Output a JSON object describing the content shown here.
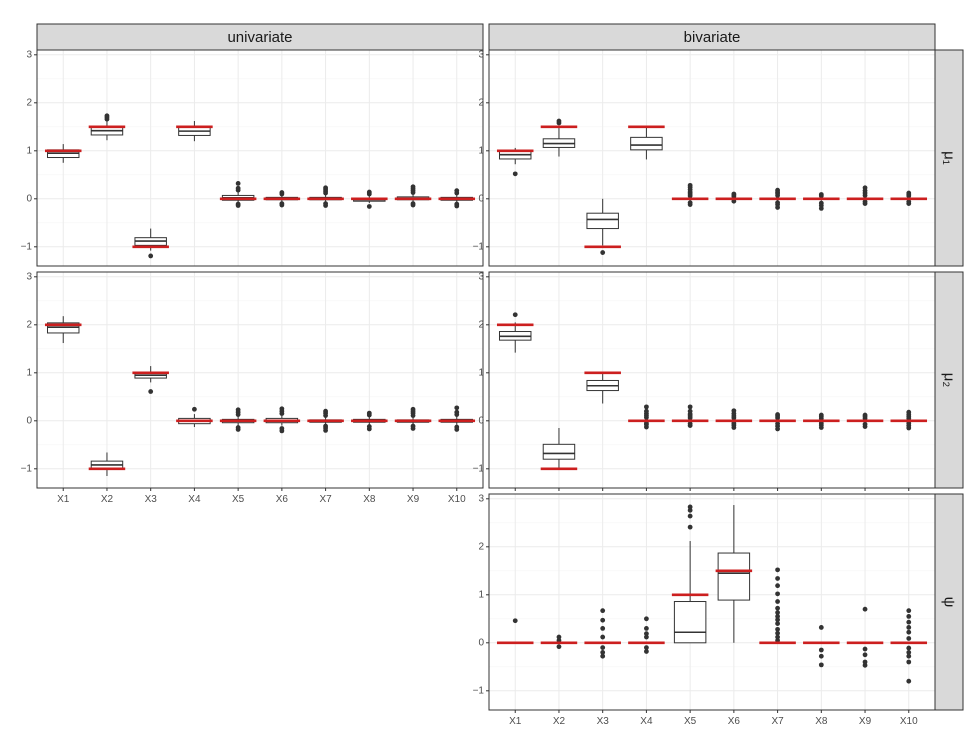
{
  "chart_data": {
    "type": "boxplot",
    "title": "",
    "xlabel": "",
    "ylabel": "",
    "categories": [
      "X1",
      "X2",
      "X3",
      "X4",
      "X5",
      "X6",
      "X7",
      "X8",
      "X9",
      "X10"
    ],
    "ylim": [
      -1.4,
      3.1
    ],
    "yticks": [
      -1,
      0,
      1,
      2,
      3
    ],
    "ytick_labels": [
      "−1",
      "0",
      "1",
      "2",
      "3"
    ],
    "truth_color": "#cc1f1f",
    "columns": [
      "univariate",
      "bivariate"
    ],
    "rows": [
      "μ₁",
      "μ₂",
      "ψ"
    ],
    "panels": [
      {
        "column": "univariate",
        "row": "μ₁",
        "truth": [
          1,
          1.5,
          -1,
          1.5,
          0,
          0,
          0,
          0,
          0,
          0
        ],
        "boxes": [
          {
            "min": 0.75,
            "q1": 0.86,
            "median": 0.95,
            "q3": 1.02,
            "max": 1.14,
            "outliers": []
          },
          {
            "min": 1.22,
            "q1": 1.33,
            "median": 1.42,
            "q3": 1.5,
            "max": 1.62,
            "outliers": [
              1.66,
              1.7,
              1.73
            ]
          },
          {
            "min": -1.08,
            "q1": -0.97,
            "median": -0.88,
            "q3": -0.81,
            "max": -0.62,
            "outliers": [
              -1.19
            ]
          },
          {
            "min": 1.2,
            "q1": 1.32,
            "median": 1.41,
            "q3": 1.49,
            "max": 1.62,
            "outliers": []
          },
          {
            "min": -0.08,
            "q1": -0.03,
            "median": 0.02,
            "q3": 0.07,
            "max": 0.15,
            "outliers": [
              -0.14,
              -0.11,
              0.18,
              0.22,
              0.32
            ]
          },
          {
            "min": -0.07,
            "q1": -0.02,
            "median": 0.0,
            "q3": 0.03,
            "max": 0.08,
            "outliers": [
              -0.13,
              -0.1,
              0.1,
              0.13
            ]
          },
          {
            "min": -0.07,
            "q1": -0.02,
            "median": 0.0,
            "q3": 0.03,
            "max": 0.08,
            "outliers": [
              -0.14,
              -0.1,
              0.12,
              0.16,
              0.2,
              0.23
            ]
          },
          {
            "min": -0.09,
            "q1": -0.05,
            "median": -0.02,
            "q3": 0.01,
            "max": 0.06,
            "outliers": [
              -0.16,
              0.1,
              0.14
            ]
          },
          {
            "min": -0.07,
            "q1": -0.02,
            "median": 0.01,
            "q3": 0.04,
            "max": 0.09,
            "outliers": [
              -0.13,
              -0.1,
              0.13,
              0.17,
              0.21,
              0.25
            ]
          },
          {
            "min": -0.08,
            "q1": -0.03,
            "median": 0.0,
            "q3": 0.03,
            "max": 0.08,
            "outliers": [
              -0.15,
              -0.11,
              0.12,
              0.17
            ]
          }
        ]
      },
      {
        "column": "bivariate",
        "row": "μ₁",
        "truth": [
          1,
          1.5,
          -1,
          1.5,
          0,
          0,
          0,
          0,
          0,
          0
        ],
        "boxes": [
          {
            "min": 0.72,
            "q1": 0.83,
            "median": 0.92,
            "q3": 0.99,
            "max": 1.06,
            "outliers": [
              0.52
            ]
          },
          {
            "min": 0.88,
            "q1": 1.07,
            "median": 1.15,
            "q3": 1.25,
            "max": 1.5,
            "outliers": [
              1.58,
              1.62
            ]
          },
          {
            "min": -0.97,
            "q1": -0.62,
            "median": -0.43,
            "q3": -0.3,
            "max": 0.0,
            "outliers": [
              -1.12
            ]
          },
          {
            "min": 0.82,
            "q1": 1.02,
            "median": 1.12,
            "q3": 1.28,
            "max": 1.48,
            "outliers": []
          },
          {
            "min": -0.04,
            "q1": -0.01,
            "median": 0.0,
            "q3": 0.01,
            "max": 0.04,
            "outliers": [
              -0.12,
              -0.08,
              0.06,
              0.1,
              0.14,
              0.19,
              0.24,
              0.28
            ]
          },
          {
            "min": -0.03,
            "q1": -0.01,
            "median": 0.0,
            "q3": 0.01,
            "max": 0.03,
            "outliers": [
              -0.05,
              0.05,
              0.08,
              0.1
            ]
          },
          {
            "min": -0.04,
            "q1": -0.01,
            "median": 0.0,
            "q3": 0.01,
            "max": 0.04,
            "outliers": [
              -0.18,
              -0.12,
              -0.08,
              0.07,
              0.11,
              0.14,
              0.18
            ]
          },
          {
            "min": -0.04,
            "q1": -0.01,
            "median": 0.0,
            "q3": 0.01,
            "max": 0.04,
            "outliers": [
              -0.2,
              -0.14,
              -0.09,
              0.06,
              0.09
            ]
          },
          {
            "min": -0.03,
            "q1": -0.01,
            "median": 0.0,
            "q3": 0.01,
            "max": 0.03,
            "outliers": [
              -0.1,
              -0.06,
              0.07,
              0.12,
              0.17,
              0.23
            ]
          },
          {
            "min": -0.03,
            "q1": -0.01,
            "median": 0.0,
            "q3": 0.01,
            "max": 0.03,
            "outliers": [
              -0.1,
              -0.06,
              0.06,
              0.09,
              0.12
            ]
          }
        ]
      },
      {
        "column": "univariate",
        "row": "μ₂",
        "truth": [
          2,
          -1,
          1,
          0,
          0,
          0,
          0,
          0,
          0,
          0
        ],
        "boxes": [
          {
            "min": 1.62,
            "q1": 1.83,
            "median": 1.95,
            "q3": 2.04,
            "max": 2.18,
            "outliers": []
          },
          {
            "min": -1.15,
            "q1": -0.99,
            "median": -0.92,
            "q3": -0.84,
            "max": -0.66,
            "outliers": []
          },
          {
            "min": 0.8,
            "q1": 0.89,
            "median": 0.95,
            "q3": 1.01,
            "max": 1.14,
            "outliers": [
              0.61
            ]
          },
          {
            "min": -0.13,
            "q1": -0.06,
            "median": 0.0,
            "q3": 0.05,
            "max": 0.14,
            "outliers": [
              0.24
            ]
          },
          {
            "min": -0.1,
            "q1": -0.04,
            "median": 0.0,
            "q3": 0.03,
            "max": 0.09,
            "outliers": [
              -0.18,
              -0.14,
              0.13,
              0.18,
              0.23
            ]
          },
          {
            "min": -0.1,
            "q1": -0.04,
            "median": 0.0,
            "q3": 0.05,
            "max": 0.1,
            "outliers": [
              -0.21,
              -0.16,
              0.15,
              0.2,
              0.25
            ]
          },
          {
            "min": -0.08,
            "q1": -0.03,
            "median": -0.01,
            "q3": 0.02,
            "max": 0.07,
            "outliers": [
              -0.2,
              -0.15,
              -0.11,
              0.11,
              0.16,
              0.2
            ]
          },
          {
            "min": -0.08,
            "q1": -0.03,
            "median": 0.0,
            "q3": 0.03,
            "max": 0.08,
            "outliers": [
              -0.17,
              -0.12,
              0.12,
              0.16
            ]
          },
          {
            "min": -0.08,
            "q1": -0.03,
            "median": -0.01,
            "q3": 0.02,
            "max": 0.07,
            "outliers": [
              -0.16,
              -0.11,
              0.11,
              0.16,
              0.2,
              0.24
            ]
          },
          {
            "min": -0.08,
            "q1": -0.03,
            "median": 0.0,
            "q3": 0.03,
            "max": 0.09,
            "outliers": [
              -0.18,
              -0.13,
              0.13,
              0.18,
              0.27
            ]
          }
        ]
      },
      {
        "column": "bivariate",
        "row": "μ₂",
        "truth": [
          2,
          -1,
          1,
          0,
          0,
          0,
          0,
          0,
          0,
          0
        ],
        "boxes": [
          {
            "min": 1.42,
            "q1": 1.68,
            "median": 1.76,
            "q3": 1.86,
            "max": 2.05,
            "outliers": [
              2.21
            ]
          },
          {
            "min": -0.98,
            "q1": -0.8,
            "median": -0.68,
            "q3": -0.49,
            "max": -0.15,
            "outliers": []
          },
          {
            "min": 0.36,
            "q1": 0.63,
            "median": 0.73,
            "q3": 0.84,
            "max": 1.0,
            "outliers": []
          },
          {
            "min": -0.02,
            "q1": -0.01,
            "median": 0.0,
            "q3": 0.01,
            "max": 0.02,
            "outliers": [
              -0.13,
              -0.08,
              -0.05,
              0.07,
              0.11,
              0.15,
              0.2,
              0.29
            ]
          },
          {
            "min": -0.02,
            "q1": -0.01,
            "median": 0.0,
            "q3": 0.01,
            "max": 0.02,
            "outliers": [
              -0.1,
              -0.06,
              0.06,
              0.1,
              0.14,
              0.2,
              0.29
            ]
          },
          {
            "min": -0.02,
            "q1": -0.01,
            "median": 0.0,
            "q3": 0.01,
            "max": 0.02,
            "outliers": [
              -0.14,
              -0.09,
              -0.05,
              0.06,
              0.1,
              0.15,
              0.21
            ]
          },
          {
            "min": -0.02,
            "q1": -0.01,
            "median": 0.0,
            "q3": 0.01,
            "max": 0.02,
            "outliers": [
              -0.17,
              -0.11,
              -0.06,
              0.06,
              0.1,
              0.13
            ]
          },
          {
            "min": -0.02,
            "q1": -0.01,
            "median": 0.0,
            "q3": 0.01,
            "max": 0.02,
            "outliers": [
              -0.14,
              -0.09,
              -0.05,
              0.05,
              0.09,
              0.12
            ]
          },
          {
            "min": -0.02,
            "q1": -0.01,
            "median": 0.0,
            "q3": 0.01,
            "max": 0.02,
            "outliers": [
              -0.12,
              -0.07,
              0.05,
              0.09,
              0.12
            ]
          },
          {
            "min": -0.02,
            "q1": -0.01,
            "median": 0.0,
            "q3": 0.01,
            "max": 0.02,
            "outliers": [
              -0.15,
              -0.1,
              -0.05,
              0.05,
              0.09,
              0.13,
              0.18
            ]
          }
        ]
      },
      {
        "column": "bivariate",
        "row": "ψ",
        "truth": [
          0,
          0,
          0,
          0,
          1,
          1.5,
          0,
          0,
          0,
          0
        ],
        "boxes": [
          {
            "min": 0.0,
            "q1": 0.0,
            "median": 0.0,
            "q3": 0.0,
            "max": 0.0,
            "outliers": [
              0.46
            ]
          },
          {
            "min": 0.0,
            "q1": 0.0,
            "median": 0.0,
            "q3": 0.0,
            "max": 0.0,
            "outliers": [
              -0.08,
              0.05,
              0.12
            ]
          },
          {
            "min": 0.0,
            "q1": 0.0,
            "median": 0.0,
            "q3": 0.0,
            "max": 0.0,
            "outliers": [
              -0.28,
              -0.2,
              -0.1,
              0.12,
              0.3,
              0.47,
              0.67
            ]
          },
          {
            "min": 0.0,
            "q1": 0.0,
            "median": 0.0,
            "q3": 0.0,
            "max": 0.0,
            "outliers": [
              -0.18,
              -0.1,
              0.12,
              0.19,
              0.3,
              0.5
            ]
          },
          {
            "min": 0.0,
            "q1": 0.0,
            "median": 0.22,
            "q3": 0.86,
            "max": 2.12,
            "outliers": [
              2.41,
              2.64,
              2.76,
              2.83
            ]
          },
          {
            "min": 0.0,
            "q1": 0.89,
            "median": 1.45,
            "q3": 1.87,
            "max": 2.87,
            "outliers": []
          },
          {
            "min": 0.0,
            "q1": 0.0,
            "median": 0.0,
            "q3": 0.0,
            "max": 0.0,
            "outliers": [
              0.05,
              0.12,
              0.2,
              0.28,
              0.4,
              0.48,
              0.55,
              0.63,
              0.72,
              0.86,
              1.02,
              1.19,
              1.34,
              1.52
            ]
          },
          {
            "min": 0.0,
            "q1": 0.0,
            "median": 0.0,
            "q3": 0.0,
            "max": 0.0,
            "outliers": [
              -0.46,
              -0.28,
              -0.15,
              0.32
            ]
          },
          {
            "min": 0.0,
            "q1": 0.0,
            "median": 0.0,
            "q3": 0.0,
            "max": 0.0,
            "outliers": [
              -0.47,
              -0.4,
              -0.25,
              -0.13,
              0.7
            ]
          },
          {
            "min": 0.0,
            "q1": 0.0,
            "median": 0.0,
            "q3": 0.0,
            "max": 0.0,
            "outliers": [
              -0.8,
              -0.4,
              -0.28,
              -0.2,
              -0.11,
              0.09,
              0.22,
              0.32,
              0.43,
              0.55,
              0.67
            ]
          }
        ]
      }
    ]
  }
}
